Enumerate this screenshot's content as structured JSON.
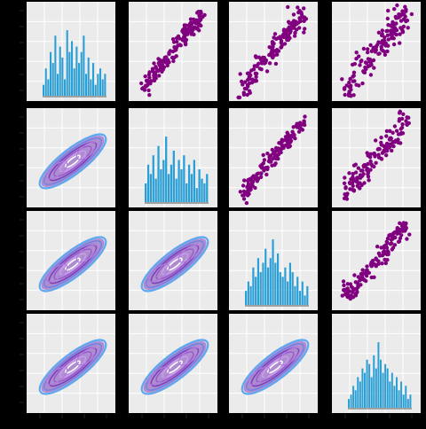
{
  "chart_data": {
    "type": "pair-grid",
    "n_vars": 4,
    "diagonal": "histogram",
    "upper": "scatter",
    "lower": "kde-contour",
    "grid": true,
    "colors": {
      "panel_bg": "#ebebeb",
      "grid": "#ffffff",
      "histogram": "#2a9fd6",
      "scatter": "#800080",
      "kde_outer": "#5fa8f0",
      "kde_mid": "#7b3fb8",
      "kde_inner": "#ffffff"
    },
    "variables": [
      {
        "histogram_counts": [
          2,
          5,
          3,
          8,
          6,
          11,
          4,
          9,
          7,
          3,
          12,
          8,
          10,
          5,
          9,
          6,
          8,
          11,
          4,
          7,
          3,
          6,
          2,
          4,
          5,
          3,
          4
        ]
      },
      {
        "histogram_counts": [
          4,
          8,
          6,
          10,
          5,
          12,
          7,
          9,
          14,
          6,
          8,
          11,
          5,
          9,
          7,
          10,
          4,
          8,
          6,
          9,
          3,
          7,
          5,
          4,
          6
        ]
      },
      {
        "histogram_counts": [
          3,
          5,
          4,
          8,
          6,
          10,
          7,
          9,
          12,
          8,
          10,
          14,
          9,
          11,
          7,
          6,
          8,
          5,
          9,
          7,
          4,
          6,
          3,
          5,
          2,
          4
        ]
      },
      {
        "histogram_counts": [
          2,
          3,
          5,
          4,
          7,
          6,
          9,
          8,
          11,
          10,
          7,
          12,
          9,
          15,
          11,
          8,
          10,
          9,
          6,
          8,
          5,
          7,
          4,
          6,
          3,
          5,
          2,
          3
        ]
      }
    ],
    "x_tick_labels": [
      "",
      "",
      "",
      ""
    ],
    "y_tick_labels": [
      "",
      "",
      "",
      ""
    ]
  }
}
